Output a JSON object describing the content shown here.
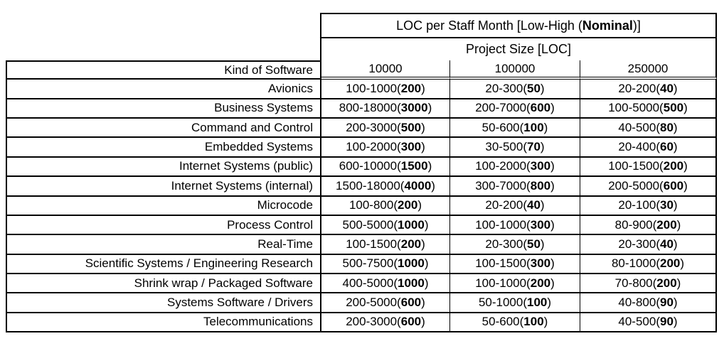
{
  "header": {
    "title": {
      "pre": "LOC per Staff Month [Low-High (",
      "bold": "Nominal",
      "post": ")]"
    },
    "subtitle": "Project Size [LOC]"
  },
  "columns": {
    "kind_label": "Kind of Software",
    "sizes": [
      "10000",
      "100000",
      "250000"
    ]
  },
  "rows": [
    {
      "kind": "Avionics",
      "cells": [
        {
          "low": 100,
          "high": 1000,
          "nominal": 200
        },
        {
          "low": 20,
          "high": 300,
          "nominal": 50
        },
        {
          "low": 20,
          "high": 200,
          "nominal": 40
        }
      ]
    },
    {
      "kind": "Business Systems",
      "cells": [
        {
          "low": 800,
          "high": 18000,
          "nominal": 3000
        },
        {
          "low": 200,
          "high": 7000,
          "nominal": 600
        },
        {
          "low": 100,
          "high": 5000,
          "nominal": 500
        }
      ]
    },
    {
      "kind": "Command and Control",
      "cells": [
        {
          "low": 200,
          "high": 3000,
          "nominal": 500
        },
        {
          "low": 50,
          "high": 600,
          "nominal": 100
        },
        {
          "low": 40,
          "high": 500,
          "nominal": 80
        }
      ]
    },
    {
      "kind": "Embedded Systems",
      "cells": [
        {
          "low": 100,
          "high": 2000,
          "nominal": 300
        },
        {
          "low": 30,
          "high": 500,
          "nominal": 70
        },
        {
          "low": 20,
          "high": 400,
          "nominal": 60
        }
      ]
    },
    {
      "kind": "Internet Systems (public)",
      "cells": [
        {
          "low": 600,
          "high": 10000,
          "nominal": 1500
        },
        {
          "low": 100,
          "high": 2000,
          "nominal": 300
        },
        {
          "low": 100,
          "high": 1500,
          "nominal": 200
        }
      ]
    },
    {
      "kind": "Internet Systems (internal)",
      "cells": [
        {
          "low": 1500,
          "high": 18000,
          "nominal": 4000
        },
        {
          "low": 300,
          "high": 7000,
          "nominal": 800
        },
        {
          "low": 200,
          "high": 5000,
          "nominal": 600
        }
      ]
    },
    {
      "kind": "Microcode",
      "cells": [
        {
          "low": 100,
          "high": 800,
          "nominal": 200
        },
        {
          "low": 20,
          "high": 200,
          "nominal": 40
        },
        {
          "low": 20,
          "high": 100,
          "nominal": 30
        }
      ]
    },
    {
      "kind": "Process Control",
      "cells": [
        {
          "low": 500,
          "high": 5000,
          "nominal": 1000
        },
        {
          "low": 100,
          "high": 1000,
          "nominal": 300
        },
        {
          "low": 80,
          "high": 900,
          "nominal": 200
        }
      ]
    },
    {
      "kind": "Real-Time",
      "cells": [
        {
          "low": 100,
          "high": 1500,
          "nominal": 200
        },
        {
          "low": 20,
          "high": 300,
          "nominal": 50
        },
        {
          "low": 20,
          "high": 300,
          "nominal": 40
        }
      ]
    },
    {
      "kind": "Scientific Systems / Engineering Research",
      "cells": [
        {
          "low": 500,
          "high": 7500,
          "nominal": 1000
        },
        {
          "low": 100,
          "high": 1500,
          "nominal": 300
        },
        {
          "low": 80,
          "high": 1000,
          "nominal": 200
        }
      ]
    },
    {
      "kind": "Shrink wrap / Packaged Software",
      "cells": [
        {
          "low": 400,
          "high": 5000,
          "nominal": 1000
        },
        {
          "low": 100,
          "high": 1000,
          "nominal": 200
        },
        {
          "low": 70,
          "high": 800,
          "nominal": 200
        }
      ]
    },
    {
      "kind": "Systems Software / Drivers",
      "cells": [
        {
          "low": 200,
          "high": 5000,
          "nominal": 600
        },
        {
          "low": 50,
          "high": 1000,
          "nominal": 100
        },
        {
          "low": 40,
          "high": 800,
          "nominal": 90
        }
      ]
    },
    {
      "kind": "Telecommunications",
      "cells": [
        {
          "low": 200,
          "high": 3000,
          "nominal": 600
        },
        {
          "low": 50,
          "high": 600,
          "nominal": 100
        },
        {
          "low": 40,
          "high": 500,
          "nominal": 90
        }
      ]
    }
  ],
  "colors": {
    "border": "#000000",
    "text": "#000000",
    "background": "#ffffff"
  }
}
